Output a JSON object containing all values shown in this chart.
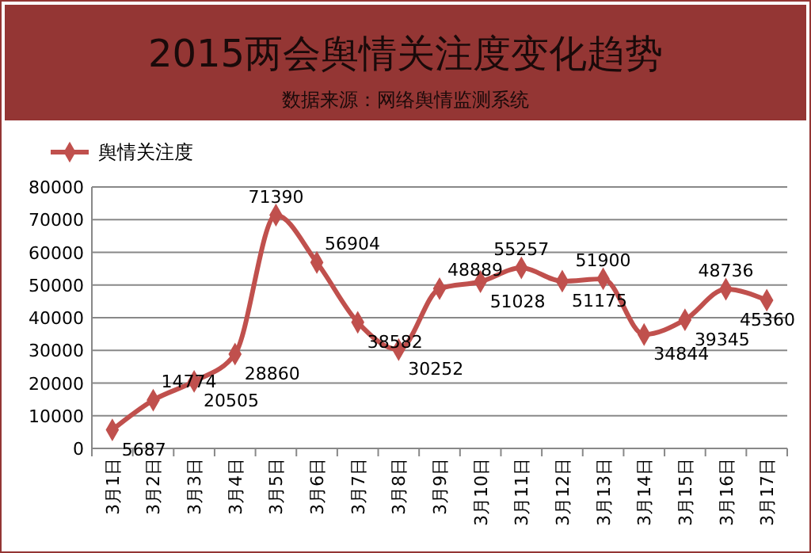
{
  "chart_data": {
    "type": "line",
    "title": "2015两会舆情关注度变化趋势",
    "subtitle": "数据来源：网络舆情监测系统",
    "categories": [
      "3月1日",
      "3月2日",
      "3月3日",
      "3月4日",
      "3月5日",
      "3月6日",
      "3月7日",
      "3月8日",
      "3月9日",
      "3月10日",
      "3月11日",
      "3月12日",
      "3月13日",
      "3月14日",
      "3月15日",
      "3月16日",
      "3月17日"
    ],
    "series": [
      {
        "name": "舆情关注度",
        "color": "#c0504d",
        "values": [
          5687,
          14774,
          20505,
          28860,
          71390,
          56904,
          38582,
          30252,
          48889,
          51028,
          55257,
          51175,
          51900,
          34844,
          39345,
          48736,
          45360
        ]
      }
    ],
    "ylim": [
      0,
      80000
    ],
    "yticks": [
      0,
      10000,
      20000,
      30000,
      40000,
      50000,
      60000,
      70000,
      80000
    ],
    "grid": "y",
    "legend": "top left",
    "marker": "diamond",
    "line_style": "solid",
    "data_labels": true
  }
}
